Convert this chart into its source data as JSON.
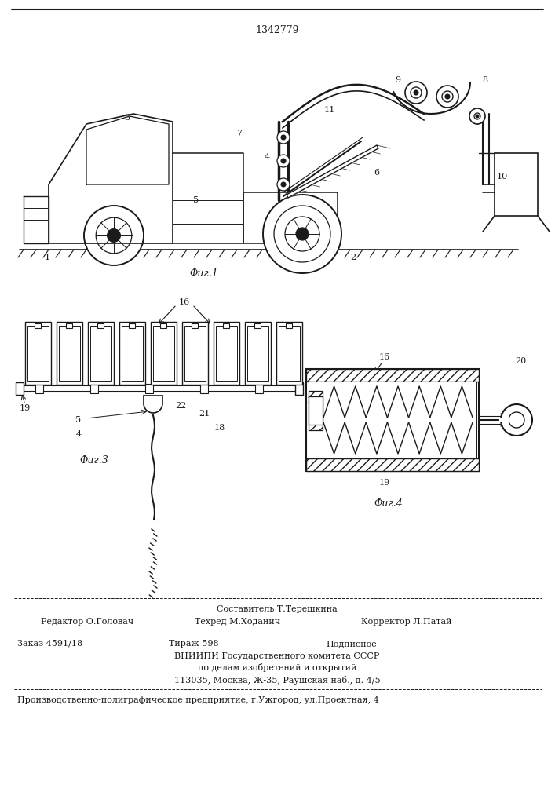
{
  "title_number": "1342779",
  "bg_color": "#ffffff",
  "line_color": "#1a1a1a",
  "fig1_label": "Фиг.1",
  "fig3_label": "Фиг.3",
  "fig4_label": "Фиг.4",
  "footer_line1_left": "Редактор О.Головач",
  "footer_line1_center": "Техред М.Ходанич",
  "footer_line1_right": "Корректор Л.Патай",
  "footer_sostavitel": "Составитель Т.Терешкина",
  "footer_zakaz": "Заказ 4591/18",
  "footer_tirazh": "Тираж 598",
  "footer_podpisnoe": "Подписное",
  "footer_vniipni": "ВНИИПИ Государственного комитета СССР",
  "footer_po_delam": "по делам изобретений и открытий",
  "footer_address": "113035, Москва, Ж-35, Раушская наб., д. 4/5",
  "footer_proizv": "Производственно-полиграфическое предприятие, г.Ужгород, ул.Проектная, 4"
}
